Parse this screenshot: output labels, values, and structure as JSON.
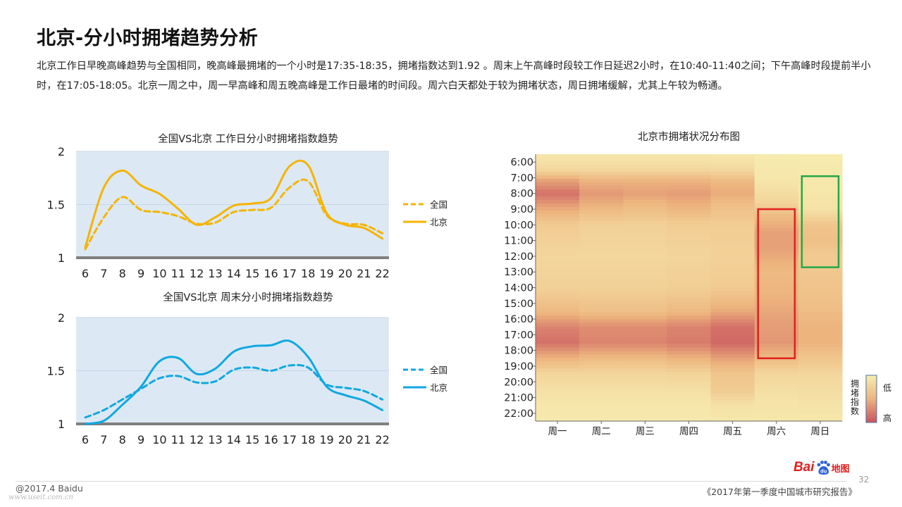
{
  "page": {
    "title": "北京-分小时拥堵趋势分析",
    "description": "北京工作日早晚高峰趋势与全国相同，晚高峰最拥堵的一个小时是17:35-18:35，拥堵指数达到1.92 。周末上午高峰时段较工作日延迟2小时，在10:40-11:40之间；下午高峰时段提前半小时，在17:05-18:05。北京一周之中，周一早高峰和周五晚高峰是工作日最堵的时间段。周六白天都处于较为拥堵状态，周日拥堵缓解，尤其上午较为畅通。"
  },
  "footer": {
    "copyright": "@2017.4 Baidu",
    "watermark": "www.useit.com.cn",
    "report": "《2017年第一季度中国城市研究报告》",
    "page_number": "32",
    "logo_text": "Bai",
    "logo_suffix": "地图",
    "logo_paw": "du"
  },
  "colors": {
    "national_workday": "#F5B400",
    "beijing_workday": "#F5B400",
    "national_weekend": "#11A8E0",
    "beijing_weekend": "#11A8E0",
    "plot_bg": "#DCE9F5",
    "axis": "#7F7F7F",
    "heat_low": "#F7EDB0",
    "heat_mid": "#EDB47E",
    "heat_high": "#C9545E",
    "box_red": "#E0201E",
    "box_green": "#22A84A"
  },
  "chart_data": [
    {
      "type": "line",
      "title": "全国VS北京 工作日分小时拥堵指数趋势",
      "x": [
        6,
        7,
        8,
        9,
        10,
        11,
        12,
        13,
        14,
        15,
        16,
        17,
        18,
        19,
        20,
        21,
        22
      ],
      "xlabel": "",
      "ylabel": "",
      "ylim": [
        1,
        2
      ],
      "yticks": [
        1,
        1.5,
        2
      ],
      "ytick_labels": [
        "1",
        "1.5",
        "2"
      ],
      "grid": true,
      "legend_position": "right",
      "series": [
        {
          "name": "全国",
          "style": "dashed",
          "values": [
            1.08,
            1.38,
            1.57,
            1.45,
            1.43,
            1.39,
            1.32,
            1.33,
            1.43,
            1.45,
            1.47,
            1.66,
            1.72,
            1.4,
            1.32,
            1.31,
            1.23
          ]
        },
        {
          "name": "北京",
          "style": "solid",
          "values": [
            1.1,
            1.66,
            1.82,
            1.68,
            1.6,
            1.46,
            1.31,
            1.38,
            1.49,
            1.51,
            1.56,
            1.86,
            1.87,
            1.42,
            1.31,
            1.28,
            1.18
          ]
        }
      ]
    },
    {
      "type": "line",
      "title": "全国VS北京 周末分小时拥堵指数趋势",
      "x": [
        6,
        7,
        8,
        9,
        10,
        11,
        12,
        13,
        14,
        15,
        16,
        17,
        18,
        19,
        20,
        21,
        22
      ],
      "xlabel": "",
      "ylabel": "",
      "ylim": [
        1,
        2
      ],
      "yticks": [
        1,
        1.5,
        2
      ],
      "ytick_labels": [
        "1",
        "1.5",
        "2"
      ],
      "grid": true,
      "legend_position": "right",
      "series": [
        {
          "name": "全国",
          "style": "dashed",
          "values": [
            1.06,
            1.13,
            1.23,
            1.33,
            1.43,
            1.45,
            1.39,
            1.4,
            1.51,
            1.53,
            1.5,
            1.55,
            1.53,
            1.37,
            1.34,
            1.31,
            1.23
          ]
        },
        {
          "name": "北京",
          "style": "solid",
          "values": [
            1.0,
            1.03,
            1.18,
            1.35,
            1.59,
            1.62,
            1.47,
            1.52,
            1.68,
            1.73,
            1.74,
            1.78,
            1.63,
            1.35,
            1.27,
            1.22,
            1.13
          ]
        }
      ]
    },
    {
      "type": "heatmap",
      "title": "北京市拥堵状况分布图",
      "days": [
        "周一",
        "周二",
        "周三",
        "周四",
        "周五",
        "周六",
        "周日"
      ],
      "hours": [
        "6:00",
        "7:00",
        "8:00",
        "9:00",
        "10:00",
        "11:00",
        "12:00",
        "13:00",
        "14:00",
        "15:00",
        "16:00",
        "17:00",
        "18:00",
        "19:00",
        "20:00",
        "21:00",
        "22:00"
      ],
      "hour_start": 5.5,
      "hour_end": 22.5,
      "colorbar": {
        "title": "拥堵指数",
        "low_label": "低",
        "high_label": "高"
      },
      "highlight_boxes": [
        {
          "day": "周六",
          "from_hour": 9.0,
          "to_hour": 18.5,
          "color": "red"
        },
        {
          "day": "周日",
          "from_hour": 6.9,
          "to_hour": 12.7,
          "color": "green"
        }
      ],
      "intensity_by_day": {
        "周一": [
          [
            5.5,
            0.05
          ],
          [
            6.5,
            0.2
          ],
          [
            7.2,
            0.6
          ],
          [
            8.0,
            0.85
          ],
          [
            8.8,
            0.6
          ],
          [
            10.0,
            0.3
          ],
          [
            12.0,
            0.2
          ],
          [
            14.0,
            0.25
          ],
          [
            15.5,
            0.45
          ],
          [
            16.5,
            0.75
          ],
          [
            17.5,
            0.85
          ],
          [
            18.5,
            0.5
          ],
          [
            19.5,
            0.2
          ],
          [
            21.0,
            0.08
          ],
          [
            22.5,
            0.03
          ]
        ],
        "周二": [
          [
            5.5,
            0.05
          ],
          [
            6.5,
            0.2
          ],
          [
            7.2,
            0.5
          ],
          [
            8.0,
            0.65
          ],
          [
            8.8,
            0.5
          ],
          [
            10.0,
            0.25
          ],
          [
            12.0,
            0.2
          ],
          [
            14.0,
            0.25
          ],
          [
            15.5,
            0.4
          ],
          [
            16.5,
            0.7
          ],
          [
            17.5,
            0.75
          ],
          [
            18.5,
            0.45
          ],
          [
            19.5,
            0.2
          ],
          [
            21.0,
            0.08
          ],
          [
            22.5,
            0.03
          ]
        ],
        "周三": [
          [
            5.5,
            0.05
          ],
          [
            6.5,
            0.2
          ],
          [
            7.2,
            0.5
          ],
          [
            8.0,
            0.6
          ],
          [
            8.8,
            0.45
          ],
          [
            10.0,
            0.25
          ],
          [
            12.0,
            0.2
          ],
          [
            14.0,
            0.25
          ],
          [
            15.5,
            0.4
          ],
          [
            16.5,
            0.7
          ],
          [
            17.5,
            0.75
          ],
          [
            18.5,
            0.45
          ],
          [
            19.5,
            0.2
          ],
          [
            21.0,
            0.08
          ],
          [
            22.5,
            0.03
          ]
        ],
        "周四": [
          [
            5.5,
            0.05
          ],
          [
            6.5,
            0.2
          ],
          [
            7.2,
            0.5
          ],
          [
            8.0,
            0.62
          ],
          [
            8.8,
            0.5
          ],
          [
            10.0,
            0.28
          ],
          [
            12.0,
            0.22
          ],
          [
            14.0,
            0.27
          ],
          [
            15.5,
            0.45
          ],
          [
            16.5,
            0.75
          ],
          [
            17.5,
            0.8
          ],
          [
            18.5,
            0.5
          ],
          [
            19.5,
            0.22
          ],
          [
            21.0,
            0.08
          ],
          [
            22.5,
            0.03
          ]
        ],
        "周五": [
          [
            5.5,
            0.05
          ],
          [
            6.5,
            0.18
          ],
          [
            7.2,
            0.45
          ],
          [
            8.0,
            0.55
          ],
          [
            8.8,
            0.4
          ],
          [
            10.0,
            0.28
          ],
          [
            12.0,
            0.25
          ],
          [
            14.0,
            0.3
          ],
          [
            15.5,
            0.55
          ],
          [
            16.5,
            0.85
          ],
          [
            17.5,
            0.9
          ],
          [
            18.5,
            0.6
          ],
          [
            19.5,
            0.35
          ],
          [
            20.5,
            0.3
          ],
          [
            21.5,
            0.1
          ],
          [
            22.5,
            0.05
          ]
        ],
        "周六": [
          [
            5.5,
            0.02
          ],
          [
            7.0,
            0.05
          ],
          [
            8.5,
            0.2
          ],
          [
            9.5,
            0.45
          ],
          [
            10.5,
            0.6
          ],
          [
            11.5,
            0.6
          ],
          [
            13.0,
            0.45
          ],
          [
            14.5,
            0.5
          ],
          [
            16.0,
            0.6
          ],
          [
            17.5,
            0.65
          ],
          [
            18.5,
            0.45
          ],
          [
            19.5,
            0.2
          ],
          [
            21.0,
            0.1
          ],
          [
            22.5,
            0.05
          ]
        ],
        "周日": [
          [
            5.5,
            0.02
          ],
          [
            7.5,
            0.05
          ],
          [
            9.0,
            0.1
          ],
          [
            10.0,
            0.35
          ],
          [
            11.0,
            0.4
          ],
          [
            12.0,
            0.3
          ],
          [
            13.5,
            0.35
          ],
          [
            15.0,
            0.4
          ],
          [
            16.5,
            0.5
          ],
          [
            17.5,
            0.5
          ],
          [
            18.5,
            0.35
          ],
          [
            19.5,
            0.2
          ],
          [
            21.0,
            0.12
          ],
          [
            22.5,
            0.05
          ]
        ]
      }
    }
  ]
}
